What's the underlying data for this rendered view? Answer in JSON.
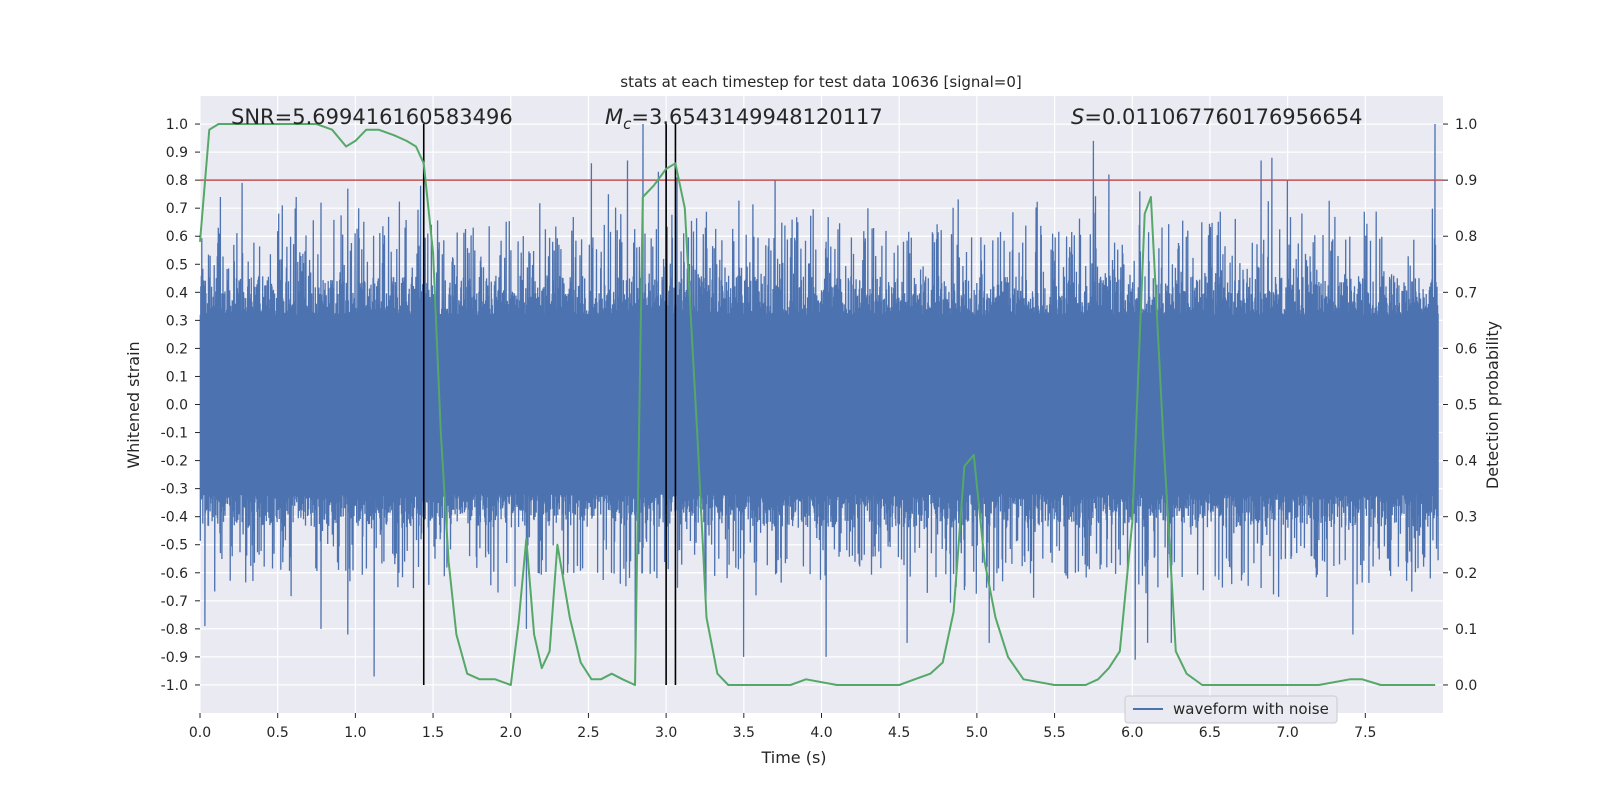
{
  "chart_data": {
    "type": "line",
    "title": "stats at each timestep for test data 10636 [signal=0]",
    "xlabel": "Time (s)",
    "ylabel": "Whitened strain",
    "y2label": "Detection probability",
    "xlim": [
      0.0,
      8.0
    ],
    "ylim": [
      -1.1,
      1.1
    ],
    "y2lim": [
      -0.05,
      1.05
    ],
    "x_ticks": [
      "0.0",
      "0.5",
      "1.0",
      "1.5",
      "2.0",
      "2.5",
      "3.0",
      "3.5",
      "4.0",
      "4.5",
      "5.0",
      "5.5",
      "6.0",
      "6.5",
      "7.0",
      "7.5"
    ],
    "y_ticks": [
      "1.0",
      "0.9",
      "0.8",
      "0.7",
      "0.6",
      "0.5",
      "0.4",
      "0.3",
      "0.2",
      "0.1",
      "0.0",
      "-0.1",
      "-0.2",
      "-0.3",
      "-0.4",
      "-0.5",
      "-0.6",
      "-0.7",
      "-0.8",
      "-0.9",
      "-1.0"
    ],
    "y2_ticks": [
      "1.0",
      "0.9",
      "0.8",
      "0.7",
      "0.6",
      "0.5",
      "0.4",
      "0.3",
      "0.2",
      "0.1",
      "0.0"
    ],
    "grid": true,
    "legend_position": "bottom-right",
    "annotations": {
      "snr": "SNR=5.699416160583496",
      "mc_symbol": "M",
      "mc_sub": "c",
      "mc_value": "=3.6543149948120117",
      "s_symbol": "S",
      "s_value": "=0.011067760176956654"
    },
    "threshold": {
      "value": 0.9,
      "axis": "y2",
      "color": "#c44e52"
    },
    "vertical_lines": [
      1.44,
      3.0,
      3.06
    ],
    "series": [
      {
        "name": "waveform with noise",
        "axis": "y",
        "color": "#4c72b0",
        "envelope": {
          "band": 0.32,
          "peaks": [
            [
              0.13,
              0.74
            ],
            [
              0.27,
              0.79
            ],
            [
              0.53,
              0.71
            ],
            [
              0.62,
              0.74
            ],
            [
              0.78,
              0.72
            ],
            [
              0.95,
              0.77
            ],
            [
              1.02,
              0.7
            ],
            [
              1.42,
              0.78
            ],
            [
              1.44,
              0.94
            ],
            [
              2.52,
              0.86
            ],
            [
              2.63,
              0.75
            ],
            [
              2.75,
              0.87
            ],
            [
              2.85,
              1.0
            ],
            [
              2.95,
              0.83
            ],
            [
              3.0,
              1.0
            ],
            [
              3.07,
              0.81
            ],
            [
              3.7,
              0.8
            ],
            [
              4.3,
              0.7
            ],
            [
              5.75,
              0.94
            ],
            [
              5.85,
              0.82
            ],
            [
              6.05,
              0.76
            ],
            [
              6.83,
              0.87
            ],
            [
              6.9,
              0.88
            ],
            [
              7.0,
              0.8
            ],
            [
              7.95,
              1.0
            ]
          ],
          "troughs": [
            [
              0.03,
              -0.79
            ],
            [
              0.13,
              -0.53
            ],
            [
              0.78,
              -0.8
            ],
            [
              0.95,
              -0.82
            ],
            [
              1.12,
              -0.97
            ],
            [
              2.1,
              -0.8
            ],
            [
              2.8,
              -0.88
            ],
            [
              3.5,
              -0.9
            ],
            [
              4.03,
              -0.9
            ],
            [
              4.55,
              -0.85
            ],
            [
              5.08,
              -0.85
            ],
            [
              6.02,
              -0.91
            ],
            [
              6.1,
              -0.85
            ],
            [
              6.25,
              -0.85
            ],
            [
              7.42,
              -0.82
            ]
          ]
        }
      },
      {
        "name": "detection probability",
        "axis": "y2",
        "color": "#55a868",
        "x": [
          0.0,
          0.06,
          0.12,
          0.25,
          0.5,
          0.75,
          0.85,
          0.94,
          1.0,
          1.07,
          1.15,
          1.25,
          1.33,
          1.39,
          1.44,
          1.5,
          1.55,
          1.6,
          1.65,
          1.72,
          1.8,
          1.9,
          2.0,
          2.05,
          2.1,
          2.15,
          2.2,
          2.25,
          2.3,
          2.38,
          2.45,
          2.52,
          2.58,
          2.65,
          2.72,
          2.8,
          2.85,
          2.92,
          3.0,
          3.06,
          3.12,
          3.2,
          3.26,
          3.33,
          3.4,
          3.6,
          3.8,
          3.9,
          4.1,
          4.3,
          4.5,
          4.6,
          4.7,
          4.78,
          4.85,
          4.92,
          4.98,
          5.05,
          5.12,
          5.2,
          5.25,
          5.3,
          5.5,
          5.7,
          5.78,
          5.85,
          5.92,
          6.0,
          6.08,
          6.12,
          6.2,
          6.28,
          6.35,
          6.45,
          6.7,
          6.9,
          7.2,
          7.4,
          7.48,
          7.6,
          7.8,
          7.95
        ],
        "values": [
          0.79,
          0.99,
          1.0,
          1.0,
          1.0,
          1.0,
          0.99,
          0.96,
          0.97,
          0.99,
          0.99,
          0.98,
          0.97,
          0.96,
          0.93,
          0.77,
          0.45,
          0.22,
          0.09,
          0.02,
          0.01,
          0.01,
          0.0,
          0.11,
          0.26,
          0.09,
          0.03,
          0.06,
          0.25,
          0.12,
          0.04,
          0.01,
          0.01,
          0.02,
          0.01,
          0.0,
          0.87,
          0.89,
          0.92,
          0.93,
          0.85,
          0.45,
          0.12,
          0.02,
          0.0,
          0.0,
          0.0,
          0.01,
          0.0,
          0.0,
          0.0,
          0.01,
          0.02,
          0.04,
          0.13,
          0.39,
          0.41,
          0.22,
          0.12,
          0.05,
          0.03,
          0.01,
          0.0,
          0.0,
          0.01,
          0.03,
          0.06,
          0.29,
          0.84,
          0.87,
          0.44,
          0.06,
          0.02,
          0.0,
          0.0,
          0.0,
          0.0,
          0.01,
          0.01,
          0.0,
          0.0,
          0.0
        ]
      }
    ]
  }
}
